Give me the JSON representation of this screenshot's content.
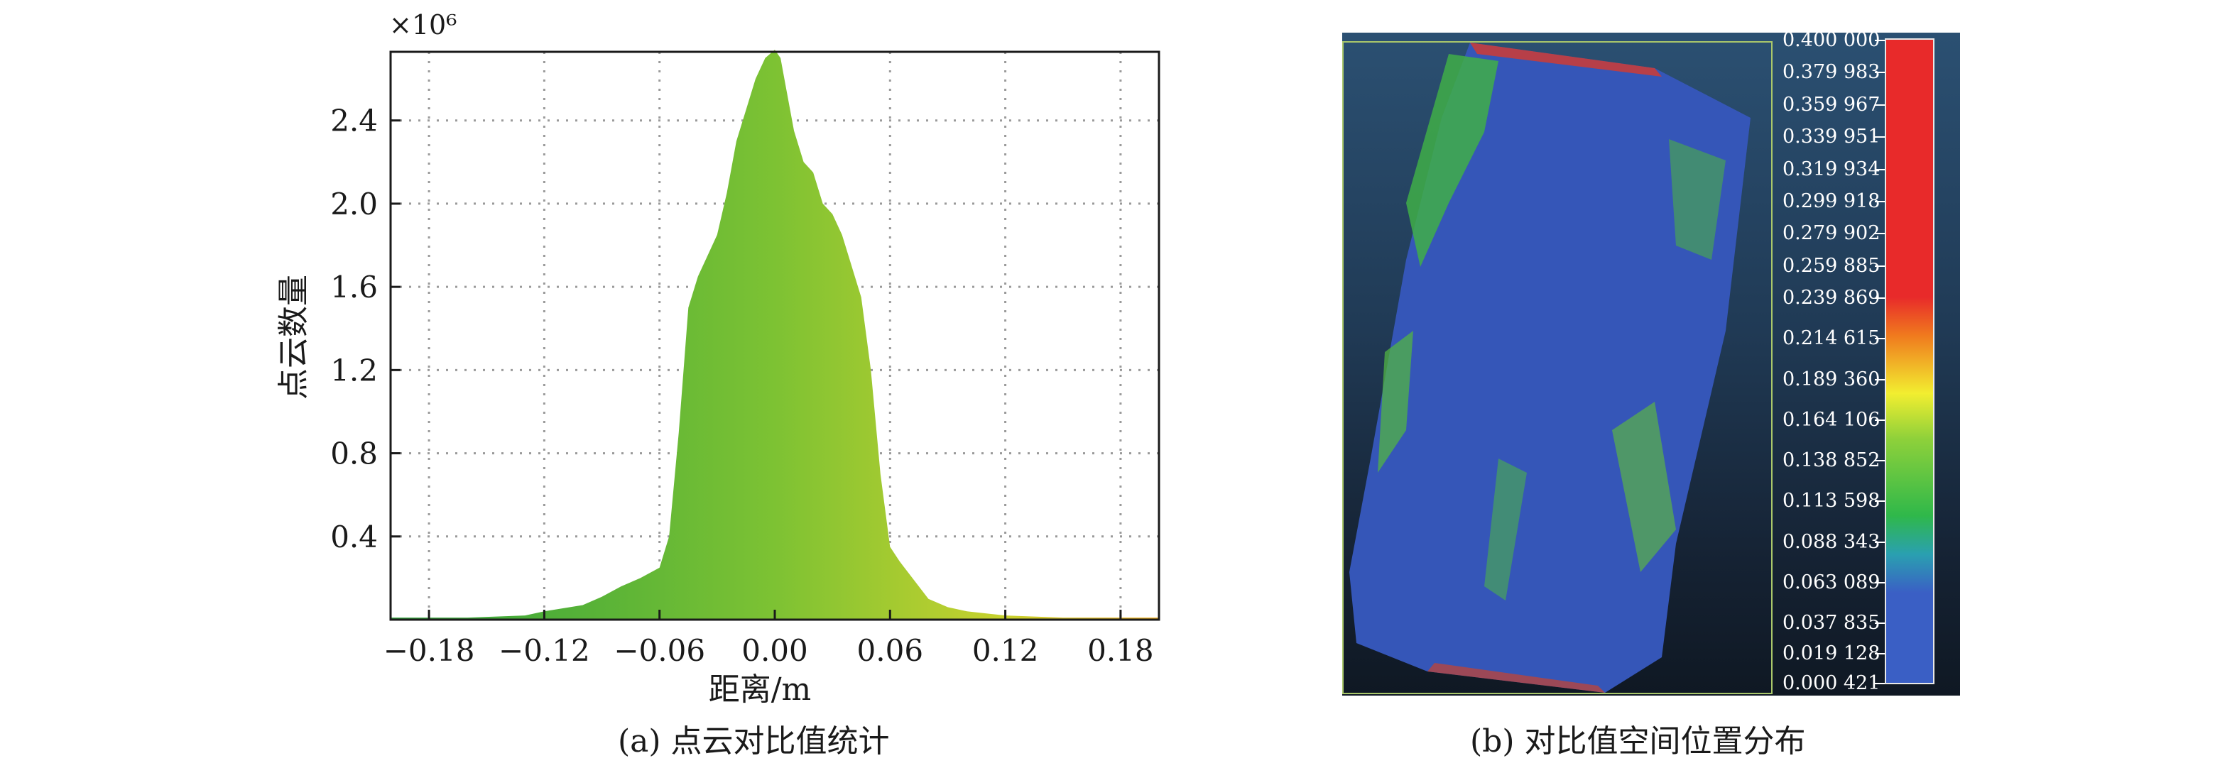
{
  "chart_data": [
    {
      "type": "histogram",
      "multiplier": "×10⁶",
      "xlabel": "距离/m",
      "ylabel": "点云数量",
      "xlim": [
        -0.2,
        0.2
      ],
      "ylim": [
        0,
        2.73
      ],
      "xticks": [
        "−0.18",
        "−0.12",
        "−0.06",
        "0.00",
        "0.06",
        "0.12",
        "0.18"
      ],
      "xtick_values": [
        -0.18,
        -0.12,
        -0.06,
        0.0,
        0.06,
        0.12,
        0.18
      ],
      "yticks": [
        "0.4",
        "0.8",
        "1.2",
        "1.6",
        "2.0",
        "2.4"
      ],
      "ytick_values": [
        0.4,
        0.8,
        1.2,
        1.6,
        2.0,
        2.4
      ],
      "grid": true,
      "x": [
        -0.2,
        -0.16,
        -0.13,
        -0.12,
        -0.1,
        -0.09,
        -0.08,
        -0.07,
        -0.06,
        -0.055,
        -0.05,
        -0.045,
        -0.04,
        -0.035,
        -0.03,
        -0.025,
        -0.02,
        -0.015,
        -0.01,
        -0.005,
        0.0,
        0.003,
        0.006,
        0.01,
        0.015,
        0.02,
        0.025,
        0.03,
        0.035,
        0.04,
        0.045,
        0.05,
        0.055,
        0.06,
        0.065,
        0.07,
        0.08,
        0.09,
        0.1,
        0.12,
        0.15,
        0.2
      ],
      "y": [
        0.01,
        0.01,
        0.02,
        0.04,
        0.07,
        0.11,
        0.16,
        0.2,
        0.25,
        0.4,
        0.9,
        1.5,
        1.65,
        1.75,
        1.85,
        2.05,
        2.3,
        2.45,
        2.6,
        2.7,
        2.74,
        2.7,
        2.55,
        2.35,
        2.2,
        2.15,
        2.0,
        1.95,
        1.85,
        1.7,
        1.55,
        1.2,
        0.7,
        0.35,
        0.28,
        0.22,
        0.1,
        0.06,
        0.04,
        0.02,
        0.01,
        0.01
      ],
      "color_low": "#2fa13c",
      "color_mid": "#7dc233",
      "color_high": "#f0ad1e",
      "caption": "(a) 点云对比值统计"
    },
    {
      "type": "heatmap",
      "colorbar_labels": [
        "0.400 000",
        "0.379 983",
        "0.359 967",
        "0.339 951",
        "0.319 934",
        "0.299 918",
        "0.279 902",
        "0.259 885",
        "0.239 869",
        "0.214 615",
        "0.189 360",
        "0.164 106",
        "0.138 852",
        "0.113 598",
        "0.088 343",
        "0.063 089",
        "0.037 835",
        "0.019 128",
        "0.000 421"
      ],
      "colorbar_values": [
        0.4,
        0.379983,
        0.359967,
        0.339951,
        0.319934,
        0.299918,
        0.279902,
        0.259885,
        0.239869,
        0.214615,
        0.18936,
        0.164106,
        0.138852,
        0.113598,
        0.088343,
        0.063089,
        0.037835,
        0.019128,
        0.000421
      ],
      "colorbar_range": [
        0.000421,
        0.4
      ],
      "colors": [
        "#e82a2a",
        "#f07a1e",
        "#f2ee30",
        "#8fd13a",
        "#2fb84a",
        "#3a5fc5"
      ],
      "caption": "(b) 对比值空间位置分布"
    }
  ]
}
